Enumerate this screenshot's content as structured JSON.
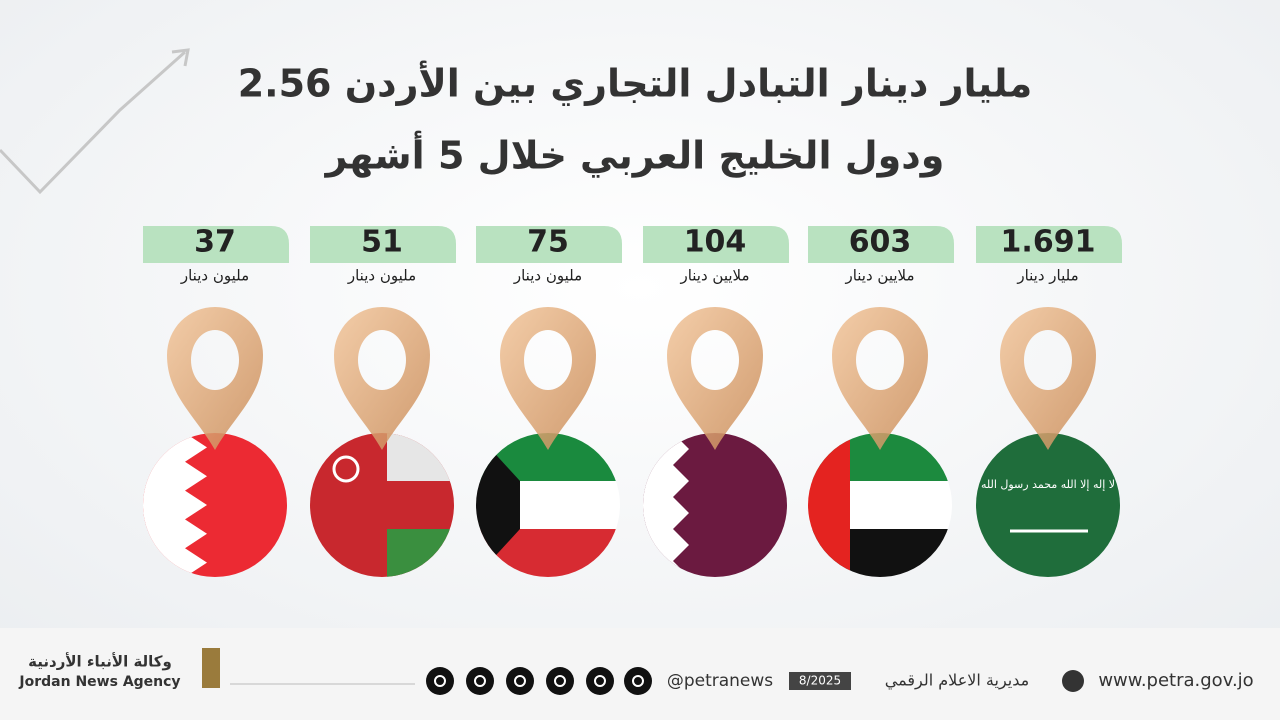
{
  "title_lines": [
    "2.56 مليار دينار التبادل التجاري بين الأردن",
    "ودول الخليج العربي خلال 5 أشهر"
  ],
  "items": [
    {
      "value": "1.691",
      "unit": "مليار دينار"
    },
    {
      "value": "603",
      "unit": "ملايين دينار"
    },
    {
      "value": "104",
      "unit": "ملايين دينار"
    },
    {
      "value": "75",
      "unit": "مليون دينار"
    },
    {
      "value": "51",
      "unit": "مليون دينار"
    },
    {
      "value": "37",
      "unit": "مليون دينار"
    }
  ],
  "flag_text": "لا إله إلا الله محمد رسول الله",
  "footer": {
    "agency_ar": "وكالة الأنباء الأردنية",
    "agency_en": "Jordan News Agency",
    "handle": "@petranews",
    "date": "8/2025",
    "department": "مديرية الاعلام الرقمي",
    "website": "www.petra.gov.jo"
  }
}
